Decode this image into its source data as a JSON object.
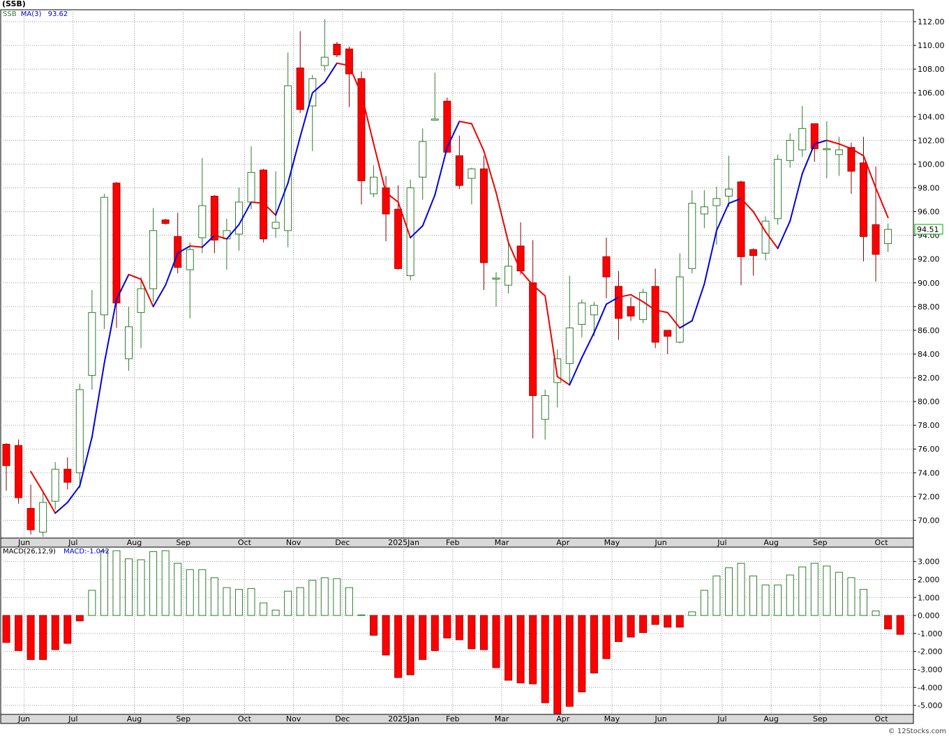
{
  "header": {
    "symbol_title": "(SSB)",
    "price_legend": {
      "symbol": "SSB",
      "ma_label": "MA(3)",
      "ma_value": "93.62"
    },
    "macd_legend": {
      "label": "MACD(26,12,9)",
      "value_label": "MACD:-1.042"
    },
    "last_price_tag": "94.51",
    "credit": "© 12Stocks.com"
  },
  "colors": {
    "up": "#2e7d2e",
    "down": "#ff0000",
    "ma_up": "#0000dd",
    "ma_down": "#ee0000",
    "grid": "#9a9a9a",
    "axis_band": "#d9d9d9",
    "tag_border": "#00aa00"
  },
  "chart_data": [
    {
      "type": "candlestick",
      "title": "(SSB)",
      "yticks": [
        "70.00",
        "72.00",
        "74.00",
        "76.00",
        "78.00",
        "80.00",
        "82.00",
        "84.00",
        "86.00",
        "88.00",
        "90.00",
        "92.00",
        "94.00",
        "96.00",
        "98.00",
        "100.00",
        "102.00",
        "104.00",
        "106.00",
        "108.00",
        "110.00",
        "112.00"
      ],
      "xticks": [
        "Jun",
        "Jul",
        "Aug",
        "Sep",
        "Oct",
        "Nov",
        "Dec",
        "2025Jan",
        "Feb",
        "Mar",
        "Apr",
        "May",
        "Jun",
        "Jul",
        "Aug",
        "Sep",
        "Oct"
      ],
      "xtick_bar_index": [
        1,
        5,
        10,
        14,
        19,
        23,
        27,
        32,
        36,
        40,
        45,
        49,
        53,
        58,
        62,
        66,
        71
      ],
      "ylim": [
        68.5,
        113
      ],
      "candles": [
        {
          "o": 76.4,
          "h": 76.5,
          "l": 72.5,
          "c": 74.6
        },
        {
          "o": 76.3,
          "h": 76.8,
          "l": 71.4,
          "c": 71.9
        },
        {
          "o": 71.0,
          "h": 73.0,
          "l": 68.8,
          "c": 69.2
        },
        {
          "o": 69.0,
          "h": 72.5,
          "l": 68.6,
          "c": 71.5
        },
        {
          "o": 71.6,
          "h": 74.9,
          "l": 70.9,
          "c": 74.3
        },
        {
          "o": 74.3,
          "h": 75.3,
          "l": 72.6,
          "c": 73.2
        },
        {
          "o": 74.0,
          "h": 81.5,
          "l": 72.7,
          "c": 81.0
        },
        {
          "o": 82.2,
          "h": 89.4,
          "l": 81.0,
          "c": 87.5
        },
        {
          "o": 87.3,
          "h": 97.5,
          "l": 86.1,
          "c": 97.2
        },
        {
          "o": 98.4,
          "h": 98.5,
          "l": 86.2,
          "c": 88.3
        },
        {
          "o": 83.6,
          "h": 88.0,
          "l": 82.6,
          "c": 86.3
        },
        {
          "o": 87.5,
          "h": 90.5,
          "l": 84.5,
          "c": 89.5
        },
        {
          "o": 89.5,
          "h": 96.3,
          "l": 88.4,
          "c": 94.4
        },
        {
          "o": 95.3,
          "h": 95.4,
          "l": 94.9,
          "c": 95.0
        },
        {
          "o": 93.9,
          "h": 95.9,
          "l": 90.8,
          "c": 91.3
        },
        {
          "o": 91.1,
          "h": 93.4,
          "l": 87.0,
          "c": 92.8
        },
        {
          "o": 93.8,
          "h": 100.5,
          "l": 92.5,
          "c": 96.5
        },
        {
          "o": 97.3,
          "h": 97.4,
          "l": 92.5,
          "c": 93.6
        },
        {
          "o": 93.7,
          "h": 95.4,
          "l": 91.1,
          "c": 94.4
        },
        {
          "o": 94.1,
          "h": 98.0,
          "l": 92.7,
          "c": 96.8
        },
        {
          "o": 96.8,
          "h": 101.5,
          "l": 96.2,
          "c": 99.3
        },
        {
          "o": 99.5,
          "h": 99.6,
          "l": 93.4,
          "c": 93.7
        },
        {
          "o": 94.6,
          "h": 99.4,
          "l": 93.8,
          "c": 95.1
        },
        {
          "o": 94.4,
          "h": 109.4,
          "l": 93.0,
          "c": 106.6
        },
        {
          "o": 108.1,
          "h": 111.2,
          "l": 104.3,
          "c": 104.6
        },
        {
          "o": 104.9,
          "h": 107.5,
          "l": 101.1,
          "c": 107.2
        },
        {
          "o": 108.3,
          "h": 112.2,
          "l": 107.8,
          "c": 109.0
        },
        {
          "o": 110.1,
          "h": 110.3,
          "l": 109.0,
          "c": 109.2
        },
        {
          "o": 109.7,
          "h": 109.9,
          "l": 104.8,
          "c": 107.6
        },
        {
          "o": 107.2,
          "h": 107.8,
          "l": 96.6,
          "c": 98.6
        },
        {
          "o": 97.5,
          "h": 99.9,
          "l": 97.2,
          "c": 98.9
        },
        {
          "o": 98.0,
          "h": 99.0,
          "l": 93.5,
          "c": 95.8
        },
        {
          "o": 96.2,
          "h": 98.2,
          "l": 91.1,
          "c": 91.2
        },
        {
          "o": 90.6,
          "h": 98.7,
          "l": 90.2,
          "c": 98.0
        },
        {
          "o": 98.9,
          "h": 103.0,
          "l": 97.0,
          "c": 101.9
        },
        {
          "o": 103.7,
          "h": 107.7,
          "l": 103.7,
          "c": 103.8
        },
        {
          "o": 105.3,
          "h": 105.6,
          "l": 101.0,
          "c": 101.0
        },
        {
          "o": 100.7,
          "h": 102.4,
          "l": 97.9,
          "c": 98.2
        },
        {
          "o": 98.8,
          "h": 99.7,
          "l": 96.6,
          "c": 99.6
        },
        {
          "o": 99.6,
          "h": 100.7,
          "l": 89.4,
          "c": 91.7
        },
        {
          "o": 90.4,
          "h": 90.9,
          "l": 88.0,
          "c": 90.4
        },
        {
          "o": 89.8,
          "h": 93.4,
          "l": 89.1,
          "c": 91.4
        },
        {
          "o": 93.1,
          "h": 95.1,
          "l": 90.7,
          "c": 91.0
        },
        {
          "o": 90.0,
          "h": 93.6,
          "l": 76.9,
          "c": 80.5
        },
        {
          "o": 78.5,
          "h": 81.0,
          "l": 76.8,
          "c": 80.5
        },
        {
          "o": 81.6,
          "h": 84.4,
          "l": 79.5,
          "c": 83.6
        },
        {
          "o": 83.2,
          "h": 90.6,
          "l": 81.5,
          "c": 86.2
        },
        {
          "o": 86.5,
          "h": 88.6,
          "l": 85.4,
          "c": 88.3
        },
        {
          "o": 87.3,
          "h": 88.4,
          "l": 85.5,
          "c": 88.1
        },
        {
          "o": 92.2,
          "h": 93.8,
          "l": 88.7,
          "c": 90.5
        },
        {
          "o": 89.7,
          "h": 91.0,
          "l": 85.2,
          "c": 87.0
        },
        {
          "o": 88.0,
          "h": 88.8,
          "l": 86.8,
          "c": 87.2
        },
        {
          "o": 86.9,
          "h": 89.5,
          "l": 86.6,
          "c": 89.2
        },
        {
          "o": 89.7,
          "h": 91.2,
          "l": 84.5,
          "c": 85.0
        },
        {
          "o": 86.0,
          "h": 86.0,
          "l": 84.0,
          "c": 85.5
        },
        {
          "o": 85.0,
          "h": 92.5,
          "l": 84.9,
          "c": 90.5
        },
        {
          "o": 91.2,
          "h": 97.8,
          "l": 90.8,
          "c": 96.7
        },
        {
          "o": 95.8,
          "h": 97.8,
          "l": 94.6,
          "c": 96.4
        },
        {
          "o": 96.5,
          "h": 98.1,
          "l": 93.2,
          "c": 97.1
        },
        {
          "o": 97.3,
          "h": 100.7,
          "l": 96.4,
          "c": 97.9
        },
        {
          "o": 98.5,
          "h": 98.6,
          "l": 89.8,
          "c": 92.2
        },
        {
          "o": 92.8,
          "h": 92.9,
          "l": 90.6,
          "c": 92.3
        },
        {
          "o": 92.5,
          "h": 95.6,
          "l": 91.9,
          "c": 95.2
        },
        {
          "o": 95.4,
          "h": 100.8,
          "l": 94.9,
          "c": 100.4
        },
        {
          "o": 100.3,
          "h": 102.6,
          "l": 99.7,
          "c": 102.0
        },
        {
          "o": 101.2,
          "h": 104.9,
          "l": 100.6,
          "c": 103.0
        },
        {
          "o": 103.4,
          "h": 103.4,
          "l": 100.2,
          "c": 101.3
        },
        {
          "o": 101.3,
          "h": 103.6,
          "l": 98.8,
          "c": 101.3
        },
        {
          "o": 100.8,
          "h": 102.3,
          "l": 99.0,
          "c": 101.2
        },
        {
          "o": 101.4,
          "h": 101.8,
          "l": 97.5,
          "c": 99.4
        },
        {
          "o": 100.1,
          "h": 102.3,
          "l": 91.8,
          "c": 93.9
        },
        {
          "o": 94.9,
          "h": 99.8,
          "l": 90.1,
          "c": 92.4
        },
        {
          "o": 93.3,
          "h": 95.0,
          "l": 92.6,
          "c": 94.5
        }
      ],
      "ma3": [
        null,
        null,
        74.1,
        72.4,
        70.6,
        71.5,
        72.9,
        77.0,
        83.2,
        88.6,
        90.7,
        90.3,
        88.0,
        89.8,
        92.5,
        93.1,
        93.0,
        94.0,
        93.7,
        94.9,
        96.8,
        96.7,
        95.7,
        98.4,
        102.3,
        106.0,
        106.9,
        108.5,
        108.3,
        105.9,
        101.7,
        97.6,
        96.8,
        93.8,
        94.8,
        97.4,
        101.4,
        103.6,
        103.4,
        101.1,
        97.6,
        93.4,
        91.0,
        89.8,
        88.9,
        82.1,
        81.4,
        83.7,
        85.8,
        88.2,
        88.8,
        89.0,
        88.4,
        87.7,
        87.5,
        86.2,
        86.8,
        89.9,
        94.4,
        96.7,
        97.1,
        96.0,
        94.3,
        92.9,
        95.2,
        99.2,
        101.7,
        102.0,
        101.7,
        101.3,
        100.7,
        98.0,
        95.5,
        93.62
      ],
      "ma_rising": [
        null,
        null,
        false,
        false,
        false,
        true,
        true,
        true,
        true,
        true,
        true,
        false,
        false,
        true,
        true,
        true,
        false,
        true,
        false,
        true,
        true,
        false,
        false,
        true,
        true,
        true,
        true,
        true,
        false,
        false,
        false,
        false,
        false,
        false,
        true,
        true,
        true,
        true,
        false,
        false,
        false,
        false,
        false,
        false,
        false,
        false,
        false,
        true,
        true,
        true,
        true,
        false,
        false,
        false,
        false,
        false,
        true,
        true,
        true,
        true,
        true,
        false,
        false,
        false,
        true,
        true,
        true,
        true,
        false,
        false,
        false,
        false,
        false,
        false
      ],
      "last_price": 94.51
    },
    {
      "type": "bar",
      "title": "MACD(26,12,9)",
      "yticks": [
        "-5.000",
        "-4.000",
        "-3.000",
        "-2.000",
        "-1.000",
        "0.000",
        "1.000",
        "2.000",
        "3.000"
      ],
      "xticks": [
        "Jun",
        "Jul",
        "Aug",
        "Sep",
        "Oct",
        "Nov",
        "Dec",
        "2025Jan",
        "Feb",
        "Mar",
        "Apr",
        "May",
        "Jun",
        "Jul",
        "Aug",
        "Sep",
        "Oct"
      ],
      "ylim": [
        -5.5,
        3.8
      ],
      "values": [
        -1.5,
        -1.95,
        -2.45,
        -2.45,
        -1.9,
        -1.55,
        -0.3,
        1.4,
        3.6,
        3.6,
        3.15,
        3.1,
        3.55,
        3.6,
        2.9,
        2.55,
        2.55,
        2.1,
        1.55,
        1.45,
        1.5,
        0.7,
        0.3,
        1.35,
        1.55,
        1.95,
        2.1,
        2.05,
        1.55,
        0.0,
        -1.1,
        -2.2,
        -3.45,
        -3.3,
        -2.45,
        -1.95,
        -1.25,
        -1.35,
        -1.85,
        -1.9,
        -2.9,
        -3.6,
        -3.75,
        -3.8,
        -4.85,
        -5.45,
        -5.05,
        -4.25,
        -3.2,
        -2.4,
        -1.45,
        -1.2,
        -0.95,
        -0.5,
        -0.65,
        -0.65,
        0.2,
        1.4,
        2.2,
        2.65,
        2.9,
        2.2,
        1.7,
        1.7,
        2.25,
        2.7,
        2.9,
        2.75,
        2.4,
        2.1,
        1.45,
        0.25,
        -0.75,
        -1.05
      ]
    }
  ]
}
